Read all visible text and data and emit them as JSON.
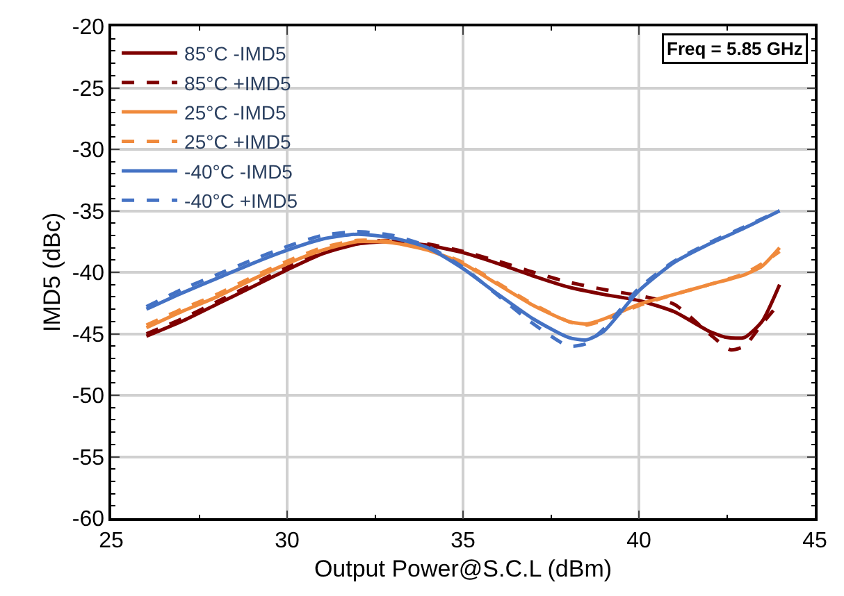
{
  "chart_data": {
    "type": "line",
    "xlabel": "Output Power@S.C.L (dBm)",
    "ylabel": "IMD5 (dBc)",
    "annotations": [
      "Freq = 5.85 GHz"
    ],
    "xlim": [
      25,
      45
    ],
    "xticks": [
      25,
      30,
      35,
      40,
      45
    ],
    "ylim": [
      -60,
      -20
    ],
    "yticks": [
      -60,
      -55,
      -50,
      -45,
      -40,
      -35,
      -30,
      -25,
      -20
    ],
    "grid": true,
    "legend": "top left",
    "marker": "none",
    "series": [
      {
        "name": "85°C -IMD5",
        "color": "#7f0000",
        "line_style": "solid",
        "x": [
          26,
          27,
          28,
          29,
          30,
          31,
          32,
          33,
          34,
          35,
          36,
          37,
          38,
          39,
          40,
          41,
          42,
          42.5,
          43,
          43.5,
          44
        ],
        "values": [
          -45.2,
          -44,
          -42.6,
          -41.2,
          -39.8,
          -38.5,
          -37.7,
          -37.5,
          -37.8,
          -38.4,
          -39.3,
          -40.3,
          -41.2,
          -41.8,
          -42.3,
          -43.2,
          -44.8,
          -45.3,
          -45.3,
          -44,
          -41
        ]
      },
      {
        "name": "85°C +IMD5",
        "color": "#7f0000",
        "line_style": "dashed",
        "x": [
          26,
          27,
          28,
          29,
          30,
          31,
          32,
          33,
          34,
          35,
          36,
          37,
          38,
          39,
          40,
          41,
          42,
          42.6,
          43,
          43.5,
          44
        ],
        "values": [
          -45,
          -43.8,
          -42.4,
          -41,
          -39.6,
          -38.3,
          -37.6,
          -37.4,
          -37.7,
          -38.3,
          -39.1,
          -40,
          -40.8,
          -41.4,
          -41.9,
          -42.6,
          -45,
          -46.3,
          -46,
          -44.2,
          -42.5
        ]
      },
      {
        "name": "25°C -IMD5",
        "color": "#f08a3c",
        "line_style": "solid",
        "x": [
          26,
          27,
          28,
          29,
          30,
          31,
          32,
          33,
          34,
          35,
          36,
          37,
          38,
          38.5,
          39,
          40,
          41,
          42,
          43,
          43.5,
          44
        ],
        "values": [
          -44.5,
          -43.2,
          -42,
          -40.6,
          -39.3,
          -38.2,
          -37.5,
          -37.6,
          -38.2,
          -39.3,
          -41,
          -42.7,
          -44,
          -44.2,
          -43.8,
          -42.6,
          -41.8,
          -41,
          -40.2,
          -39.5,
          -38
        ]
      },
      {
        "name": "25°C +IMD5",
        "color": "#f08a3c",
        "line_style": "dashed",
        "x": [
          26,
          27,
          28,
          29,
          30,
          31,
          32,
          33,
          34,
          35,
          36,
          37,
          38,
          38.5,
          39,
          40,
          41,
          42,
          43,
          43.5,
          44
        ],
        "values": [
          -44.3,
          -43,
          -41.8,
          -40.4,
          -39.1,
          -38,
          -37.4,
          -37.5,
          -38.1,
          -39.2,
          -40.9,
          -42.6,
          -44,
          -44.3,
          -43.9,
          -42.7,
          -41.8,
          -41,
          -40.1,
          -39.3,
          -38.3
        ]
      },
      {
        "name": "-40°C -IMD5",
        "color": "#4472c4",
        "line_style": "solid",
        "x": [
          26,
          27,
          28,
          29,
          30,
          31,
          32,
          33,
          34,
          35,
          36,
          37,
          38,
          38.5,
          39,
          40,
          41,
          42,
          43,
          44
        ],
        "values": [
          -43,
          -41.7,
          -40.5,
          -39.3,
          -38.2,
          -37.3,
          -36.9,
          -37.2,
          -38,
          -39.7,
          -41.8,
          -43.8,
          -45.3,
          -45.5,
          -44.8,
          -41.5,
          -39.2,
          -37.7,
          -36.4,
          -35
        ]
      },
      {
        "name": "-40°C +IMD5",
        "color": "#4472c4",
        "line_style": "dashed",
        "x": [
          26,
          27,
          28,
          29,
          30,
          31,
          32,
          33,
          34,
          35,
          36,
          37,
          38,
          38.5,
          39,
          40,
          41,
          42,
          43,
          44
        ],
        "values": [
          -42.8,
          -41.4,
          -40.2,
          -39,
          -37.9,
          -37,
          -36.7,
          -37,
          -37.9,
          -39.6,
          -41.9,
          -44.2,
          -46,
          -45.8,
          -44.6,
          -41.3,
          -39.1,
          -37.6,
          -36.3,
          -35
        ]
      }
    ]
  }
}
